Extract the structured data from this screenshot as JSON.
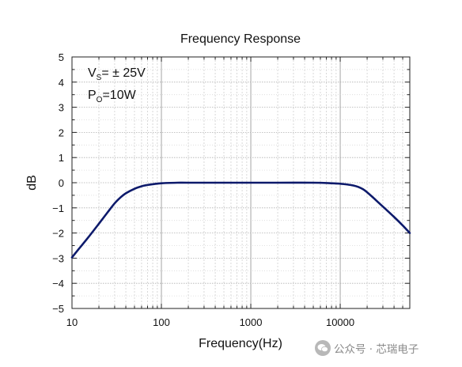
{
  "chart_data": {
    "type": "line",
    "title": "Frequency Response",
    "xlabel": "Frequency(Hz)",
    "ylabel": "dB",
    "x_scale": "log",
    "xlim": [
      10,
      60000
    ],
    "ylim": [
      -5,
      5
    ],
    "x_ticks": [
      10,
      100,
      1000,
      10000
    ],
    "x_tick_labels": [
      "10",
      "100",
      "1000",
      "10000"
    ],
    "y_ticks": [
      -5,
      -4,
      -3,
      -2,
      -1,
      0,
      1,
      2,
      3,
      4,
      5
    ],
    "y_tick_labels": [
      "−5",
      "−4",
      "−3",
      "−2",
      "−1",
      "0",
      "1",
      "2",
      "3",
      "4",
      "5"
    ],
    "grid": true,
    "line_color": "#0d1a6b",
    "annotations": [
      {
        "main": "V",
        "sub": "S",
        "rest": "= ± 25V"
      },
      {
        "main": "P",
        "sub": "O",
        "rest": "=10W"
      }
    ],
    "series": [
      {
        "x": [
          10,
          12,
          15,
          20,
          25,
          30,
          35,
          40,
          50,
          60,
          70,
          80,
          100,
          150,
          200,
          500,
          1000,
          2000,
          5000,
          8000,
          10000,
          12000,
          14000,
          16000,
          18000,
          20000,
          23000,
          27000,
          32000,
          40000,
          50000,
          60000
        ],
        "y": [
          -2.97,
          -2.62,
          -2.2,
          -1.63,
          -1.18,
          -0.82,
          -0.58,
          -0.42,
          -0.24,
          -0.14,
          -0.09,
          -0.06,
          -0.02,
          0,
          0,
          0,
          0,
          0,
          0,
          -0.02,
          -0.04,
          -0.07,
          -0.11,
          -0.17,
          -0.26,
          -0.38,
          -0.57,
          -0.8,
          -1.04,
          -1.36,
          -1.7,
          -2.0
        ]
      }
    ]
  },
  "watermark": {
    "text": "公众号 · 芯瑞电子",
    "icon": "wechat-icon"
  }
}
